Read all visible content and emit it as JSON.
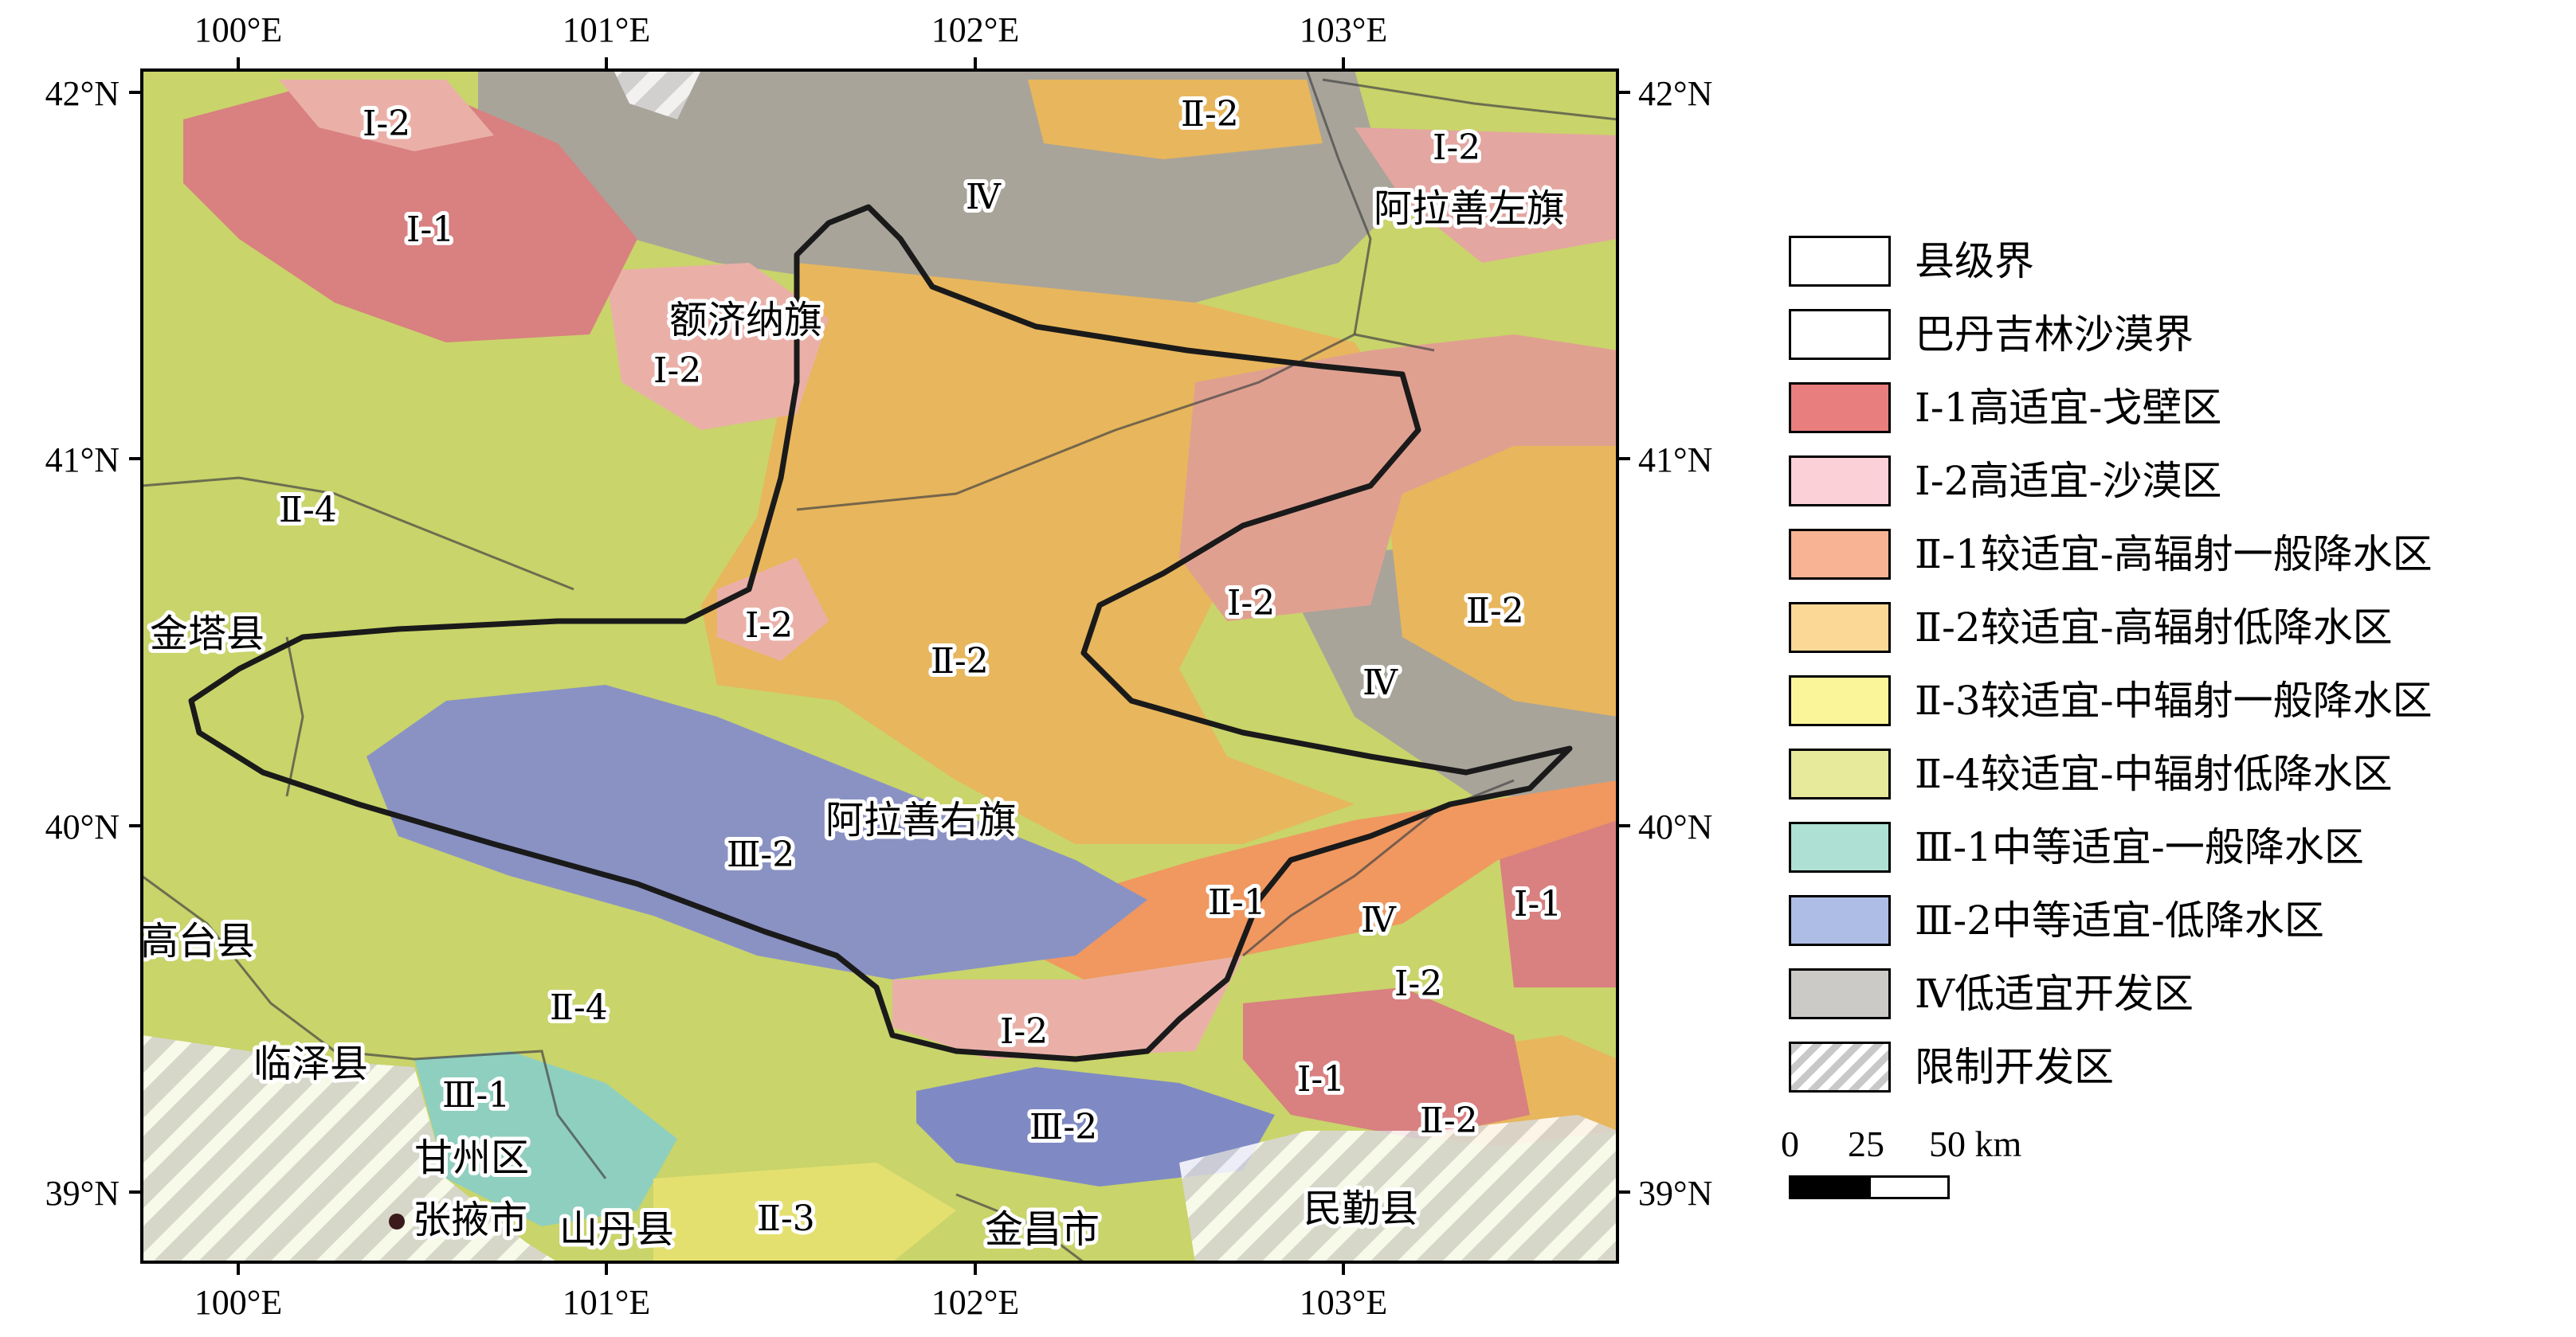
{
  "map": {
    "lon_ticks": [
      "100°E",
      "101°E",
      "102°E",
      "103°E"
    ],
    "lat_ticks": [
      "42°N",
      "41°N",
      "40°N",
      "39°N"
    ],
    "colors": {
      "I1": "#e87e7e",
      "I2": "#f2b3b3",
      "II1": "#f0a070",
      "II2": "#e8c060",
      "II3": "#f0f07a",
      "II4": "#c9d46a",
      "III1": "#8fd0c0",
      "III2": "#8a95c8",
      "IV": "#a8a49a",
      "restricted": "#d0d0d0"
    },
    "zone_labels": [
      {
        "text": "Ⅰ-2"
      },
      {
        "text": "Ⅰ-1"
      },
      {
        "text": "Ⅳ"
      },
      {
        "text": "Ⅱ-2"
      },
      {
        "text": "Ⅰ-2"
      },
      {
        "text": "Ⅰ-2"
      },
      {
        "text": "Ⅱ-4"
      },
      {
        "text": "Ⅰ-2"
      },
      {
        "text": "Ⅱ-2"
      },
      {
        "text": "Ⅰ-2"
      },
      {
        "text": "Ⅱ-2"
      },
      {
        "text": "Ⅳ"
      },
      {
        "text": "Ⅲ-2"
      },
      {
        "text": "Ⅱ-1"
      },
      {
        "text": "Ⅳ"
      },
      {
        "text": "Ⅰ-1"
      },
      {
        "text": "Ⅰ-2"
      },
      {
        "text": "Ⅱ-4"
      },
      {
        "text": "Ⅰ-2"
      },
      {
        "text": "Ⅲ-1"
      },
      {
        "text": "Ⅲ-2"
      },
      {
        "text": "Ⅰ-1"
      },
      {
        "text": "Ⅱ-2"
      },
      {
        "text": "Ⅱ-3"
      }
    ],
    "place_labels": [
      {
        "text": "阿拉善左旗"
      },
      {
        "text": "额济纳旗"
      },
      {
        "text": "金塔县"
      },
      {
        "text": "阿拉善右旗"
      },
      {
        "text": "高台县"
      },
      {
        "text": "临泽县"
      },
      {
        "text": "甘州区"
      },
      {
        "text": "张掖市"
      },
      {
        "text": "山丹县"
      },
      {
        "text": "金昌市"
      },
      {
        "text": "民勤县"
      }
    ]
  },
  "legend": {
    "items": [
      {
        "label": "县级界",
        "color": "#ffffff"
      },
      {
        "label": "巴丹吉林沙漠界",
        "color": "#ffffff"
      },
      {
        "label": "Ⅰ-1高适宜-戈壁区",
        "color": "#e87e7e"
      },
      {
        "label": "Ⅰ-2高适宜-沙漠区",
        "color": "#fbd0d6"
      },
      {
        "label": "Ⅱ-1较适宜-高辐射一般降水区",
        "color": "#f7b393"
      },
      {
        "label": "Ⅱ-2较适宜-高辐射低降水区",
        "color": "#fbd896"
      },
      {
        "label": "Ⅱ-3较适宜-中辐射一般降水区",
        "color": "#fbf59a"
      },
      {
        "label": "Ⅱ-4较适宜-中辐射低降水区",
        "color": "#e6ea9a"
      },
      {
        "label": "Ⅲ-1中等适宜-一般降水区",
        "color": "#aee0d4"
      },
      {
        "label": "Ⅲ-2中等适宜-低降水区",
        "color": "#aebde6"
      },
      {
        "label": "Ⅳ低适宜开发区",
        "color": "#cbcac6"
      },
      {
        "label": "限制开发区",
        "color": "hatch"
      }
    ]
  },
  "scale_bar": {
    "labels": [
      "0",
      "25",
      "50 km"
    ]
  }
}
